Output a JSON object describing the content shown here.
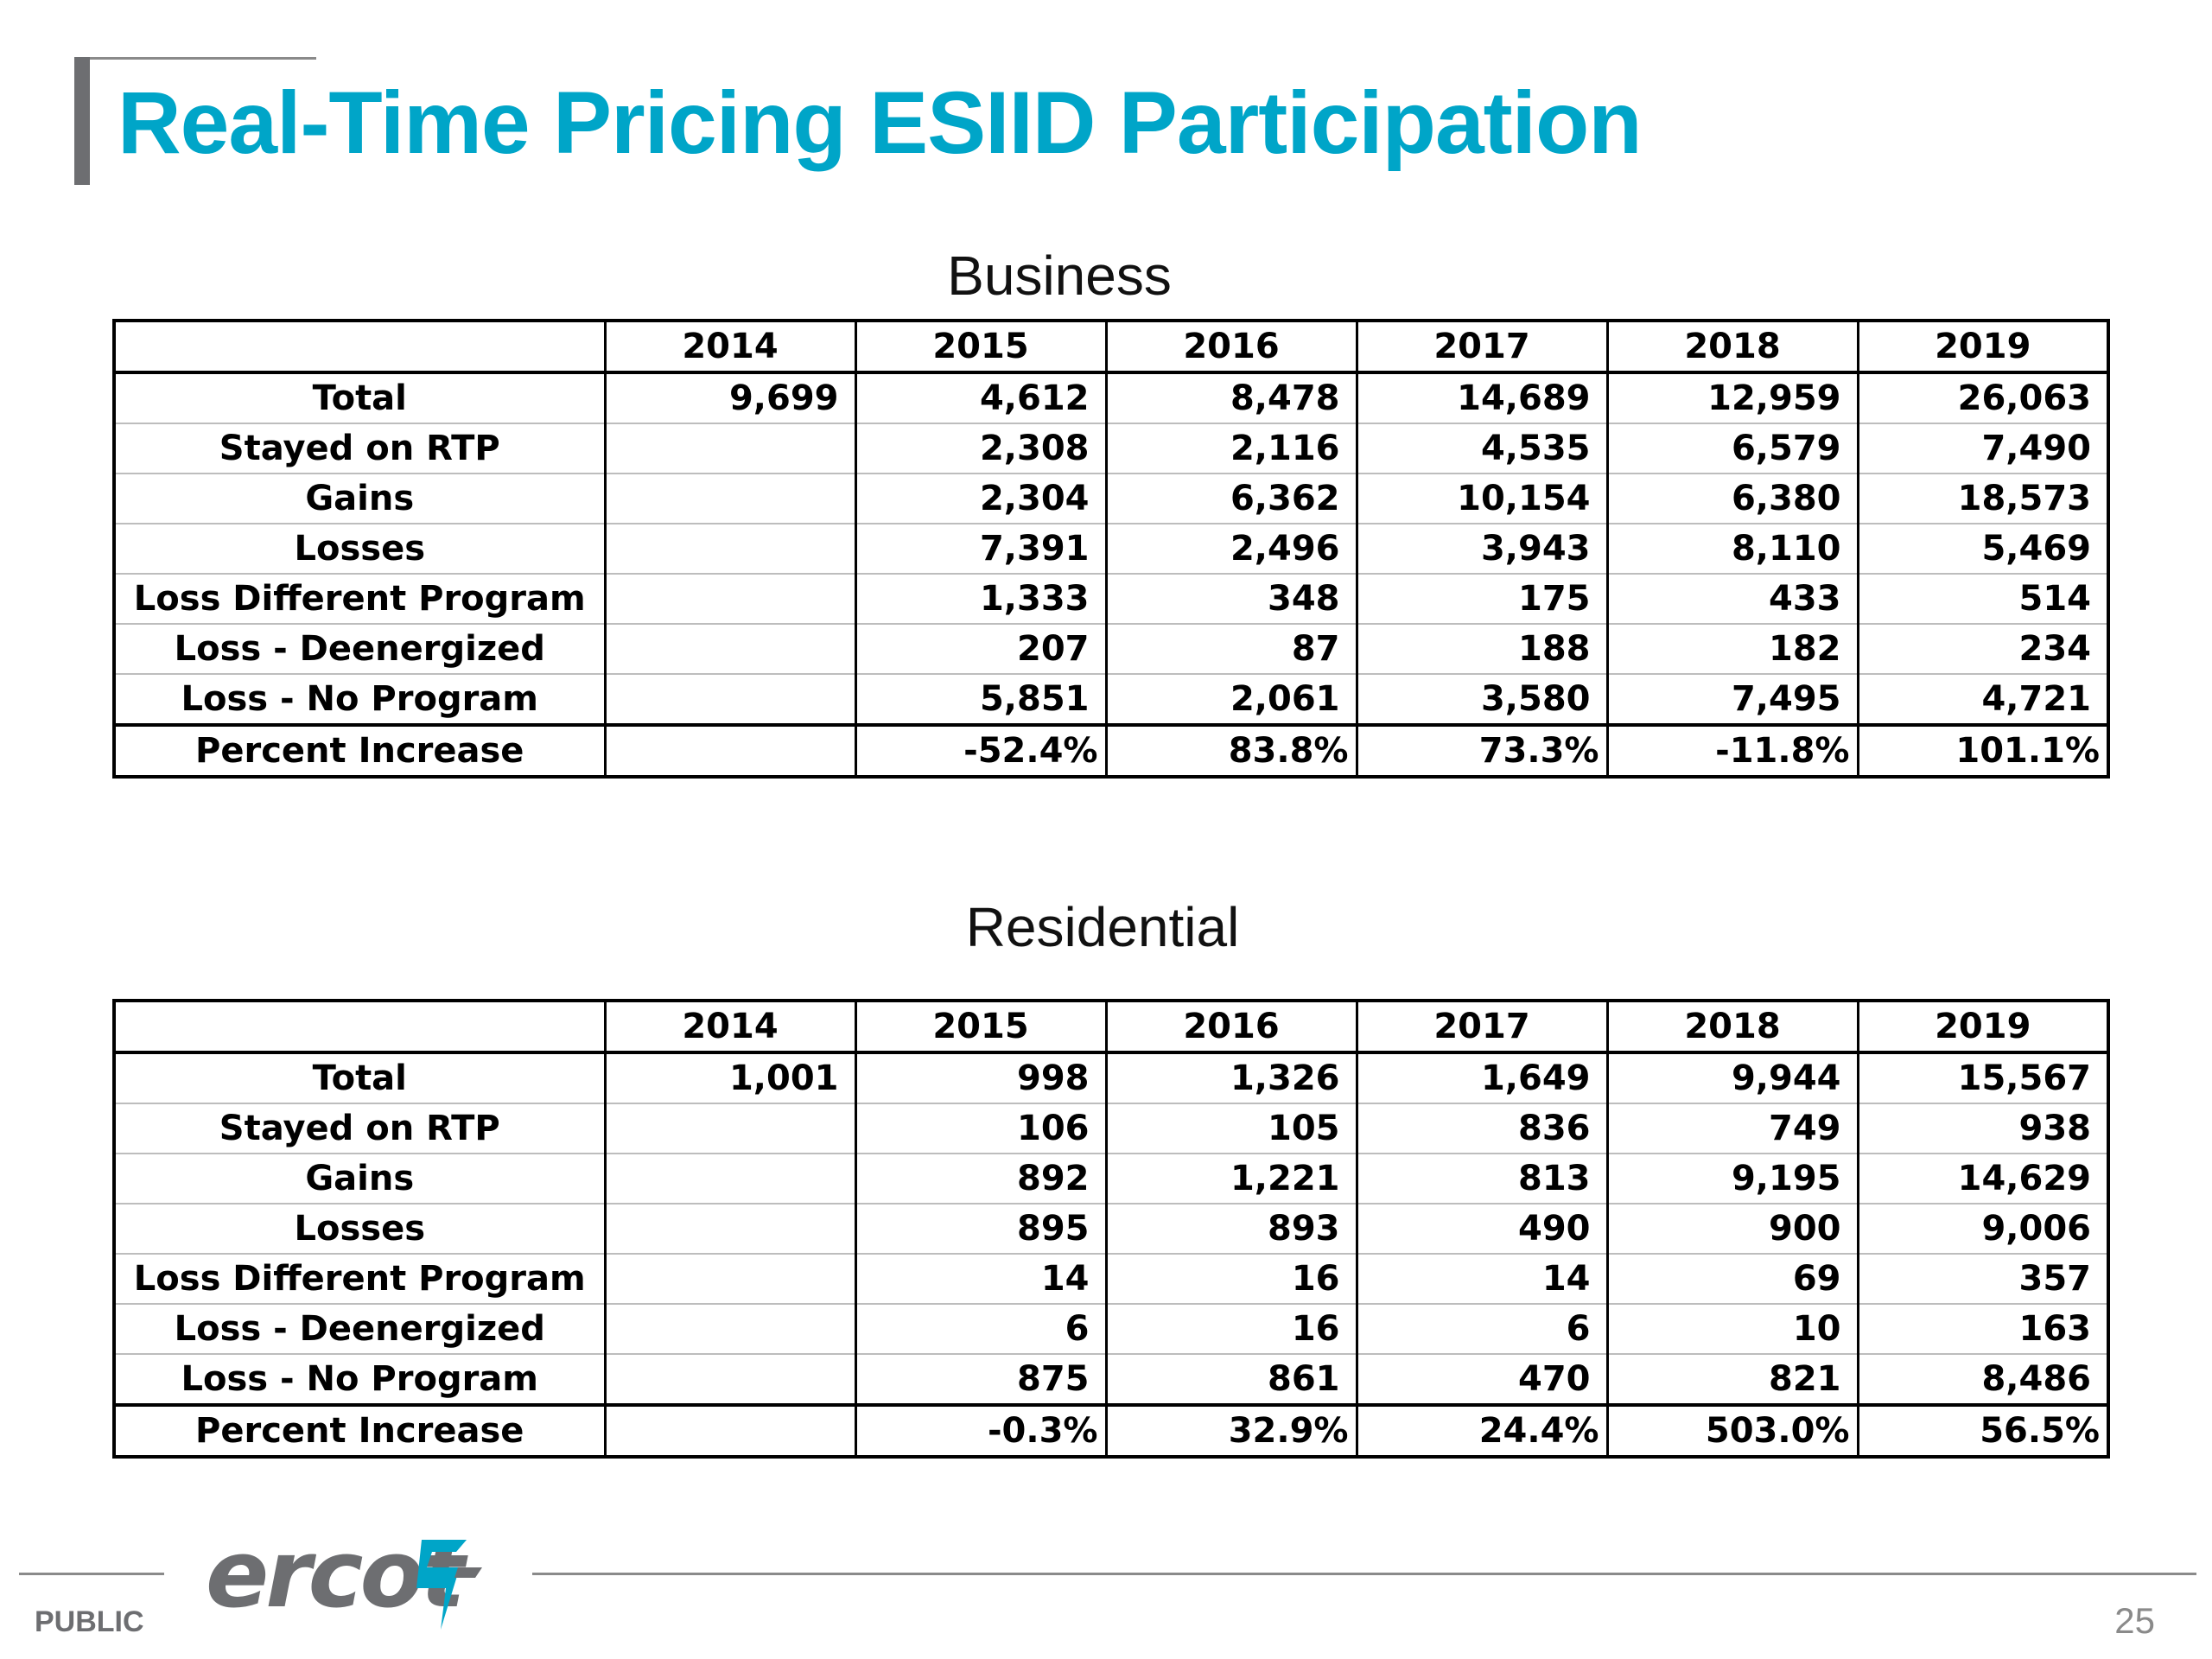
{
  "slide": {
    "title": "Real-Time Pricing ESIID Participation",
    "footer_label": "PUBLIC",
    "page_number": "25",
    "logo_text": "ercot",
    "colors": {
      "title": "#00a5c8",
      "logo": "#6d6e71",
      "logo_accent": "#00a5c8"
    }
  },
  "tables": [
    {
      "section": "Business",
      "years": [
        "2014",
        "2015",
        "2016",
        "2017",
        "2018",
        "2019"
      ],
      "rows": [
        {
          "label": "Total",
          "values": [
            "9,699",
            "4,612",
            "8,478",
            "14,689",
            "12,959",
            "26,063"
          ]
        },
        {
          "label": "Stayed on RTP",
          "values": [
            "",
            "2,308",
            "2,116",
            "4,535",
            "6,579",
            "7,490"
          ]
        },
        {
          "label": "Gains",
          "values": [
            "",
            "2,304",
            "6,362",
            "10,154",
            "6,380",
            "18,573"
          ]
        },
        {
          "label": "Losses",
          "values": [
            "",
            "7,391",
            "2,496",
            "3,943",
            "8,110",
            "5,469"
          ]
        },
        {
          "label": "Loss Different Program",
          "values": [
            "",
            "1,333",
            "348",
            "175",
            "433",
            "514"
          ]
        },
        {
          "label": "Loss  - Deenergized",
          "values": [
            "",
            "207",
            "87",
            "188",
            "182",
            "234"
          ]
        },
        {
          "label": "Loss - No Program",
          "values": [
            "",
            "5,851",
            "2,061",
            "3,580",
            "7,495",
            "4,721"
          ]
        }
      ],
      "percent_row": {
        "label": "Percent Increase",
        "values": [
          "",
          "-52.4%",
          "83.8%",
          "73.3%",
          "-11.8%",
          "101.1%"
        ]
      }
    },
    {
      "section": "Residential",
      "years": [
        "2014",
        "2015",
        "2016",
        "2017",
        "2018",
        "2019"
      ],
      "rows": [
        {
          "label": "Total",
          "values": [
            "1,001",
            "998",
            "1,326",
            "1,649",
            "9,944",
            "15,567"
          ]
        },
        {
          "label": "Stayed on RTP",
          "values": [
            "",
            "106",
            "105",
            "836",
            "749",
            "938"
          ]
        },
        {
          "label": "Gains",
          "values": [
            "",
            "892",
            "1,221",
            "813",
            "9,195",
            "14,629"
          ]
        },
        {
          "label": "Losses",
          "values": [
            "",
            "895",
            "893",
            "490",
            "900",
            "9,006"
          ]
        },
        {
          "label": "Loss Different Program",
          "values": [
            "",
            "14",
            "16",
            "14",
            "69",
            "357"
          ]
        },
        {
          "label": "Loss  - Deenergized",
          "values": [
            "",
            "6",
            "16",
            "6",
            "10",
            "163"
          ]
        },
        {
          "label": "Loss - No Program",
          "values": [
            "",
            "875",
            "861",
            "470",
            "821",
            "8,486"
          ]
        }
      ],
      "percent_row": {
        "label": "Percent Increase",
        "values": [
          "",
          "-0.3%",
          "32.9%",
          "24.4%",
          "503.0%",
          "56.5%"
        ]
      }
    }
  ]
}
